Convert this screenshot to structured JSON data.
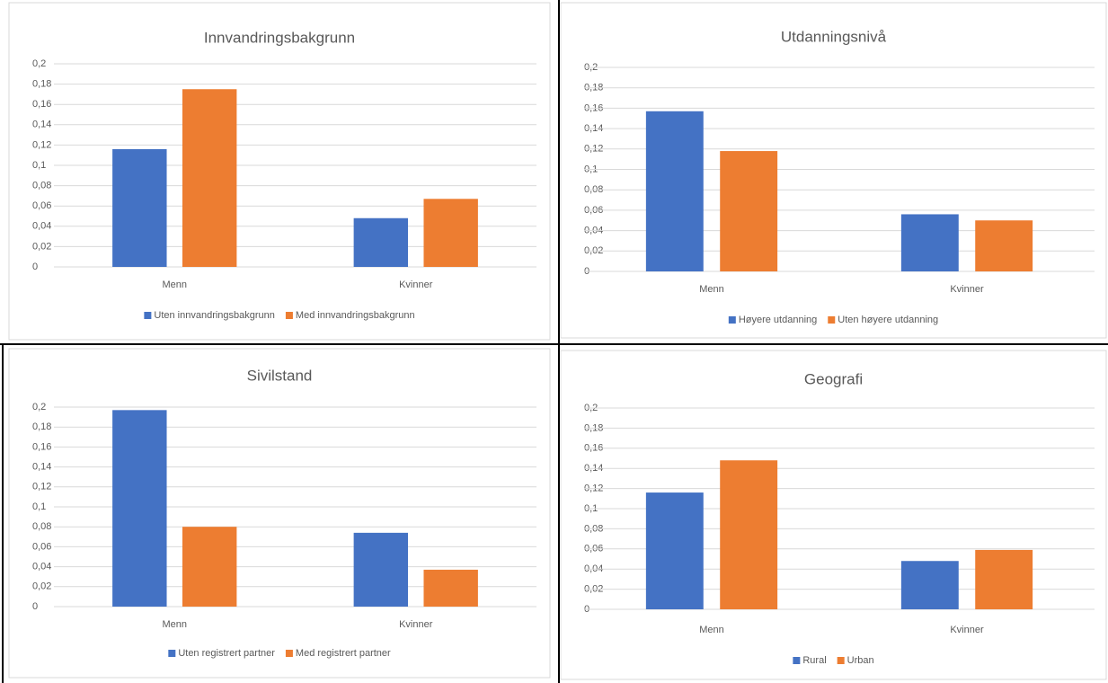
{
  "chart_data": [
    {
      "type": "bar",
      "title": "Innvandringsbakgrunn",
      "categories": [
        "Menn",
        "Kvinner"
      ],
      "series": [
        {
          "name": "Uten innvandringsbakgrunn",
          "color": "#4472c4",
          "values": [
            0.116,
            0.048
          ]
        },
        {
          "name": "Med innvandringsbakgrunn",
          "color": "#ed7d31",
          "values": [
            0.175,
            0.067
          ]
        }
      ],
      "ylim": [
        0,
        0.2
      ],
      "yticks": [
        0,
        {
          "value": 0.02,
          "label": "0,02"
        },
        {
          "value": 0.04,
          "label": "0,04"
        },
        {
          "value": 0.06,
          "label": "0,06"
        },
        {
          "value": 0.08,
          "label": "0,08"
        },
        {
          "value": 0.1,
          "label": "0,1"
        },
        {
          "value": 0.12,
          "label": "0,12"
        },
        {
          "value": 0.14,
          "label": "0,14"
        },
        {
          "value": 0.16,
          "label": "0,16"
        },
        {
          "value": 0.18,
          "label": "0,18"
        },
        {
          "value": 0.2,
          "label": "0,2"
        }
      ],
      "grid": true,
      "legend": "bottom"
    },
    {
      "type": "bar",
      "title": "Utdanningsnivå",
      "categories": [
        "Menn",
        "Kvinner"
      ],
      "series": [
        {
          "name": "Høyere utdanning",
          "color": "#4472c4",
          "values": [
            0.157,
            0.056
          ]
        },
        {
          "name": "Uten høyere utdanning",
          "color": "#ed7d31",
          "values": [
            0.118,
            0.05
          ]
        }
      ],
      "ylim": [
        0,
        0.2
      ],
      "yticks": [
        0,
        {
          "value": 0.02,
          "label": "0,02"
        },
        {
          "value": 0.04,
          "label": "0,04"
        },
        {
          "value": 0.06,
          "label": "0,06"
        },
        {
          "value": 0.08,
          "label": "0,08"
        },
        {
          "value": 0.1,
          "label": "0,1"
        },
        {
          "value": 0.12,
          "label": "0,12"
        },
        {
          "value": 0.14,
          "label": "0,14"
        },
        {
          "value": 0.16,
          "label": "0,16"
        },
        {
          "value": 0.18,
          "label": "0,18"
        },
        {
          "value": 0.2,
          "label": "0,2"
        }
      ],
      "grid": true,
      "legend": "bottom"
    },
    {
      "type": "bar",
      "title": "Sivilstand",
      "categories": [
        "Menn",
        "Kvinner"
      ],
      "series": [
        {
          "name": "Uten registrert partner",
          "color": "#4472c4",
          "values": [
            0.197,
            0.074
          ]
        },
        {
          "name": "Med registrert partner",
          "color": "#ed7d31",
          "values": [
            0.08,
            0.037
          ]
        }
      ],
      "ylim": [
        0,
        0.2
      ],
      "yticks": [
        0,
        {
          "value": 0.02,
          "label": "0,02"
        },
        {
          "value": 0.04,
          "label": "0,04"
        },
        {
          "value": 0.06,
          "label": "0,06"
        },
        {
          "value": 0.08,
          "label": "0,08"
        },
        {
          "value": 0.1,
          "label": "0,1"
        },
        {
          "value": 0.12,
          "label": "0,12"
        },
        {
          "value": 0.14,
          "label": "0,14"
        },
        {
          "value": 0.16,
          "label": "0,16"
        },
        {
          "value": 0.18,
          "label": "0,18"
        },
        {
          "value": 0.2,
          "label": "0,2"
        }
      ],
      "grid": true,
      "legend": "bottom"
    },
    {
      "type": "bar",
      "title": "Geografi",
      "categories": [
        "Menn",
        "Kvinner"
      ],
      "series": [
        {
          "name": "Rural",
          "color": "#4472c4",
          "values": [
            0.116,
            0.048
          ]
        },
        {
          "name": "Urban",
          "color": "#ed7d31",
          "values": [
            0.148,
            0.059
          ]
        }
      ],
      "ylim": [
        0,
        0.2
      ],
      "yticks": [
        0,
        {
          "value": 0.02,
          "label": "0,02"
        },
        {
          "value": 0.04,
          "label": "0,04"
        },
        {
          "value": 0.06,
          "label": "0,06"
        },
        {
          "value": 0.08,
          "label": "0,08"
        },
        {
          "value": 0.1,
          "label": "0,1"
        },
        {
          "value": 0.12,
          "label": "0,12"
        },
        {
          "value": 0.14,
          "label": "0,14"
        },
        {
          "value": 0.16,
          "label": "0,16"
        },
        {
          "value": 0.18,
          "label": "0,18"
        },
        {
          "value": 0.2,
          "label": "0,2"
        }
      ],
      "grid": true,
      "legend": "bottom"
    }
  ]
}
